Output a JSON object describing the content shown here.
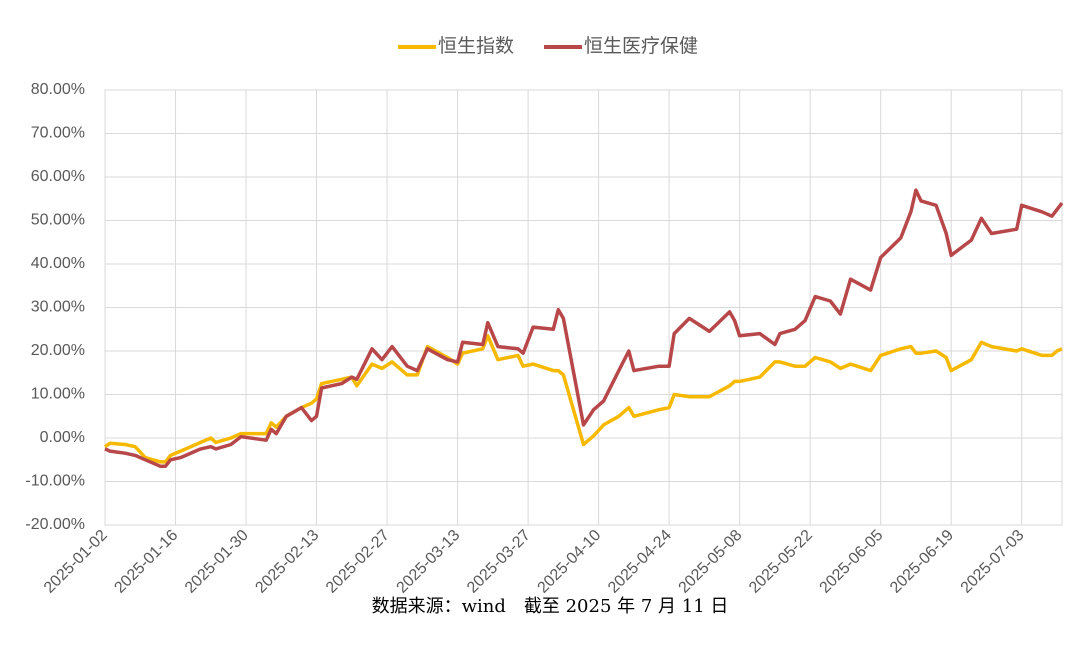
{
  "chart_data": {
    "type": "line",
    "x": [
      "2025-01-02",
      "2025-01-03",
      "2025-01-06",
      "2025-01-08",
      "2025-01-10",
      "2025-01-13",
      "2025-01-14",
      "2025-01-15",
      "2025-01-17",
      "2025-01-21",
      "2025-01-23",
      "2025-01-24",
      "2025-01-27",
      "2025-01-29",
      "2025-02-03",
      "2025-02-04",
      "2025-02-05",
      "2025-02-07",
      "2025-02-10",
      "2025-02-12",
      "2025-02-13",
      "2025-02-14",
      "2025-02-18",
      "2025-02-20",
      "2025-02-21",
      "2025-02-24",
      "2025-02-26",
      "2025-02-28",
      "2025-03-03",
      "2025-03-05",
      "2025-03-07",
      "2025-03-11",
      "2025-03-13",
      "2025-03-14",
      "2025-03-18",
      "2025-03-19",
      "2025-03-21",
      "2025-03-25",
      "2025-03-26",
      "2025-03-28",
      "2025-04-01",
      "2025-04-02",
      "2025-04-03",
      "2025-04-07",
      "2025-04-09",
      "2025-04-11",
      "2025-04-14",
      "2025-04-16",
      "2025-04-17",
      "2025-04-22",
      "2025-04-24",
      "2025-04-25",
      "2025-04-28",
      "2025-05-02",
      "2025-05-06",
      "2025-05-07",
      "2025-05-08",
      "2025-05-12",
      "2025-05-15",
      "2025-05-16",
      "2025-05-19",
      "2025-05-21",
      "2025-05-23",
      "2025-05-26",
      "2025-05-28",
      "2025-05-30",
      "2025-06-03",
      "2025-06-05",
      "2025-06-09",
      "2025-06-11",
      "2025-06-12",
      "2025-06-13",
      "2025-06-16",
      "2025-06-18",
      "2025-06-19",
      "2025-06-23",
      "2025-06-25",
      "2025-06-27",
      "2025-07-02",
      "2025-07-03",
      "2025-07-07",
      "2025-07-09",
      "2025-07-10",
      "2025-07-11"
    ],
    "series": [
      {
        "name": "恒生指数",
        "color": "#f7b900",
        "values": [
          -2,
          -1.2,
          -1.5,
          -2,
          -4.5,
          -5.5,
          -5.5,
          -4,
          -3,
          -1,
          0,
          -1,
          0,
          1,
          1,
          3.5,
          2.5,
          5,
          7,
          8,
          9,
          12.5,
          13.5,
          14,
          12,
          17,
          16,
          17.5,
          14.5,
          14.5,
          21,
          18.5,
          17,
          19.5,
          20.5,
          23.5,
          18,
          19,
          16.5,
          17,
          15.5,
          15.5,
          14.5,
          -1.5,
          0.5,
          3,
          5,
          7,
          5,
          6.5,
          7,
          10,
          9.5,
          9.5,
          12,
          13,
          13,
          14,
          17.5,
          17.5,
          16.5,
          16.5,
          18.5,
          17.5,
          16,
          17,
          15.5,
          19,
          20.5,
          21,
          19.5,
          19.5,
          20,
          18.5,
          15.5,
          18,
          22,
          21,
          20,
          20.5,
          19,
          19,
          20,
          20.5
        ]
      },
      {
        "name": "恒生医疗保健",
        "color": "#b8474a",
        "values": [
          -2.5,
          -3,
          -3.5,
          -4,
          -5,
          -6.5,
          -6.5,
          -5,
          -4.5,
          -2.5,
          -2,
          -2.5,
          -1.5,
          0.3,
          -0.5,
          2,
          1,
          5,
          7,
          4,
          5,
          11.5,
          12.5,
          14,
          13.5,
          20.5,
          18,
          21,
          16.5,
          15.5,
          20.5,
          18,
          17.5,
          22,
          21.5,
          26.5,
          21,
          20.5,
          19.5,
          25.5,
          25,
          29.5,
          27.5,
          3,
          6.5,
          8.5,
          15.5,
          20,
          15.5,
          16.5,
          16.5,
          24,
          27.5,
          24.5,
          29,
          27,
          23.5,
          24,
          21.5,
          24,
          25,
          27,
          32.5,
          31.5,
          28.5,
          36.5,
          34,
          41.5,
          46,
          52,
          57,
          54.5,
          53.5,
          47,
          42,
          45.5,
          50.5,
          47,
          48,
          53.5,
          52,
          51,
          52.5,
          54
        ]
      }
    ],
    "xlim": [
      "2025-01-02",
      "2025-07-11"
    ],
    "xticks": [
      "2025-01-02",
      "2025-01-16",
      "2025-01-30",
      "2025-02-13",
      "2025-02-27",
      "2025-03-13",
      "2025-03-27",
      "2025-04-10",
      "2025-04-24",
      "2025-05-08",
      "2025-05-22",
      "2025-06-05",
      "2025-06-19",
      "2025-07-03"
    ],
    "ylim": [
      -20,
      80
    ],
    "yticks": [
      {
        "value": -20,
        "label": "-20.00%"
      },
      {
        "value": -10,
        "label": "-10.00%"
      },
      {
        "value": 0,
        "label": "0.00%"
      },
      {
        "value": 10,
        "label": "10.00%"
      },
      {
        "value": 20,
        "label": "20.00%"
      },
      {
        "value": 30,
        "label": "30.00%"
      },
      {
        "value": 40,
        "label": "40.00%"
      },
      {
        "value": 50,
        "label": "50.00%"
      },
      {
        "value": 60,
        "label": "60.00%"
      },
      {
        "value": 70,
        "label": "70.00%"
      },
      {
        "value": 80,
        "label": "80.00%"
      }
    ],
    "grid": true,
    "legend": "top",
    "source": "数据来源：wind　截至 2025 年 7 月 11 日"
  }
}
